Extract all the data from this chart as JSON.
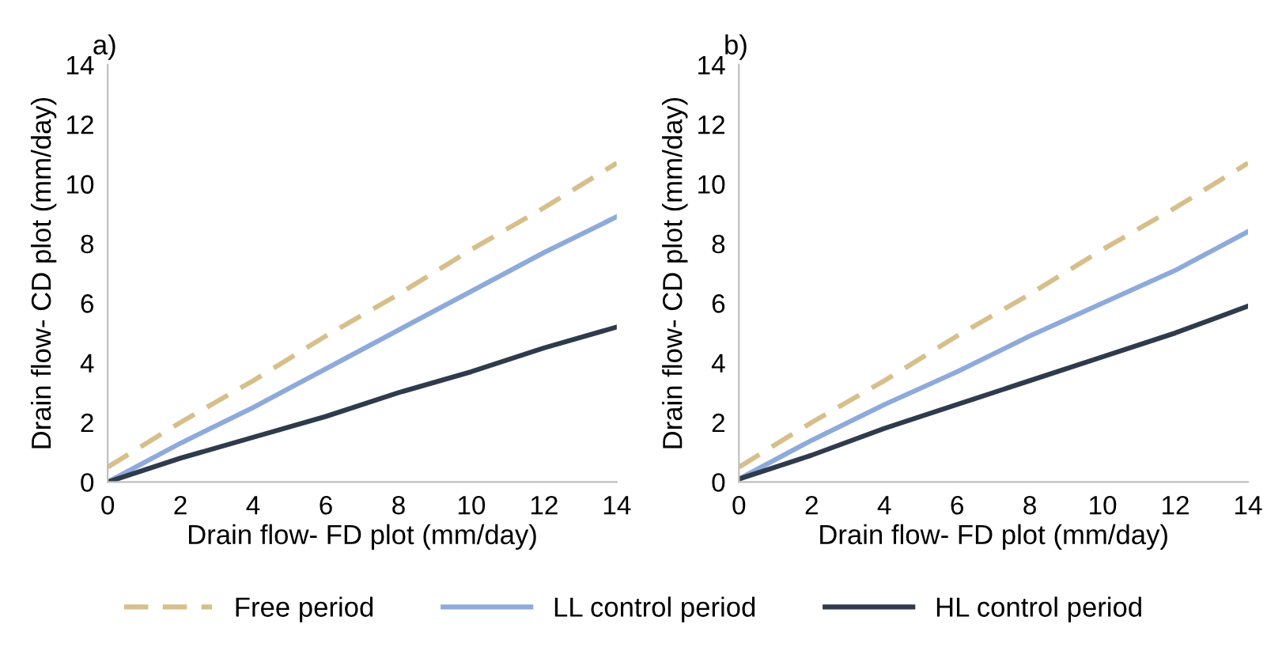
{
  "chart_data": [
    {
      "type": "line",
      "title": "a)",
      "xlabel": "Drain flow- FD plot (mm/day)",
      "ylabel": "Drain flow- CD plot (mm/day)",
      "xlim": [
        0,
        14
      ],
      "ylim": [
        0,
        14
      ],
      "xticks": [
        0,
        2,
        4,
        6,
        8,
        10,
        12,
        14
      ],
      "yticks": [
        0,
        2,
        4,
        6,
        8,
        10,
        12,
        14
      ],
      "grid": false,
      "legend": "bottom",
      "x": [
        0,
        2,
        4,
        6,
        8,
        10,
        12,
        14
      ],
      "series": [
        {
          "name": "Free period",
          "color": "#d6bf8a",
          "line_style": "dashed",
          "values": [
            0.5,
            2.0,
            3.4,
            4.9,
            6.3,
            7.8,
            9.2,
            10.7
          ]
        },
        {
          "name": "LL control period",
          "color": "#8eaadb",
          "line_style": "solid",
          "values": [
            0,
            1.3,
            2.5,
            3.8,
            5.1,
            6.4,
            7.7,
            8.9
          ]
        },
        {
          "name": "HL control period",
          "color": "#2f3b4c",
          "line_style": "solid",
          "values": [
            0,
            0.8,
            1.5,
            2.2,
            3.0,
            3.7,
            4.5,
            5.2
          ]
        }
      ]
    },
    {
      "type": "line",
      "title": "b)",
      "xlabel": "Drain flow- FD plot (mm/day)",
      "ylabel": "Drain flow- CD plot (mm/day)",
      "xlim": [
        0,
        14
      ],
      "ylim": [
        0,
        14
      ],
      "xticks": [
        0,
        2,
        4,
        6,
        8,
        10,
        12,
        14
      ],
      "yticks": [
        0,
        2,
        4,
        6,
        8,
        10,
        12,
        14
      ],
      "grid": false,
      "legend": "bottom",
      "x": [
        0,
        2,
        4,
        6,
        8,
        10,
        12,
        14
      ],
      "series": [
        {
          "name": "Free period",
          "color": "#d6bf8a",
          "line_style": "dashed",
          "values": [
            0.5,
            2.0,
            3.4,
            4.9,
            6.3,
            7.8,
            9.2,
            10.7
          ]
        },
        {
          "name": "LL control period",
          "color": "#8eaadb",
          "line_style": "solid",
          "values": [
            0.1,
            1.4,
            2.6,
            3.7,
            4.9,
            6.0,
            7.1,
            8.4
          ]
        },
        {
          "name": "HL control period",
          "color": "#2f3b4c",
          "line_style": "solid",
          "values": [
            0.1,
            0.9,
            1.8,
            2.6,
            3.4,
            4.2,
            5.0,
            5.9
          ]
        }
      ]
    }
  ]
}
